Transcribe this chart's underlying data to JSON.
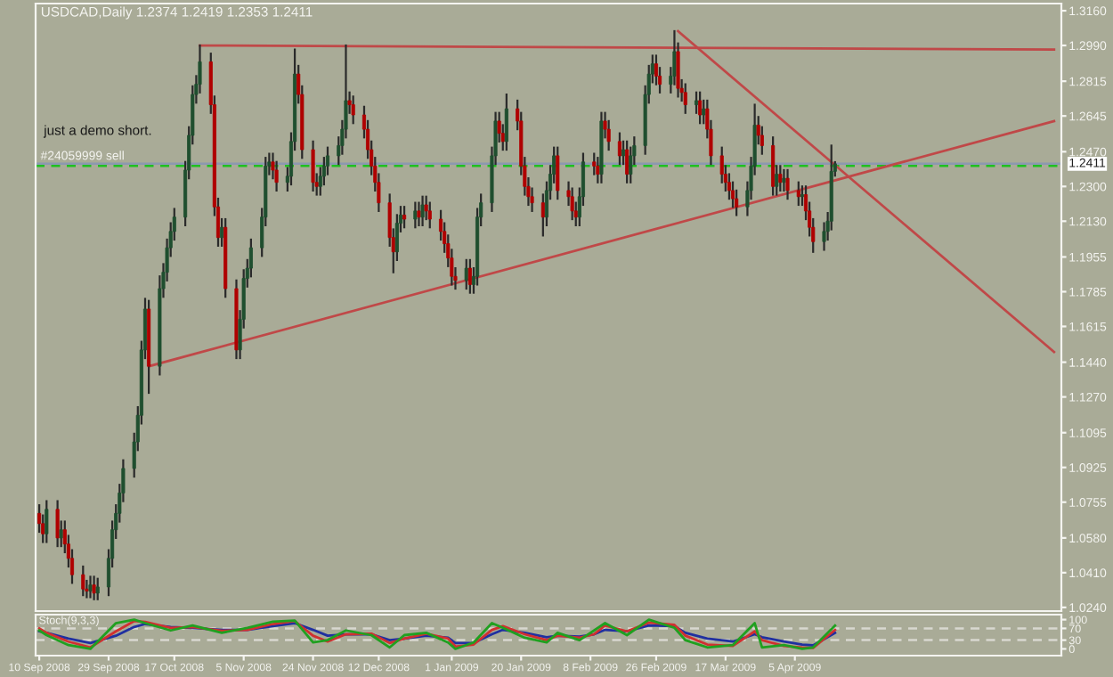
{
  "chart_data": [
    {
      "type": "candlestick",
      "title": "USDCAD,Daily 1.2374 1.2419 1.2353 1.2411",
      "x": [
        "2008-09-10",
        "2008-09-11",
        "2008-09-12",
        "2008-09-15",
        "2008-09-16",
        "2008-09-17",
        "2008-09-18",
        "2008-09-19",
        "2008-09-22",
        "2008-09-23",
        "2008-09-24",
        "2008-09-25",
        "2008-09-26",
        "2008-09-29",
        "2008-09-30",
        "2008-10-01",
        "2008-10-02",
        "2008-10-03",
        "2008-10-06",
        "2008-10-07",
        "2008-10-08",
        "2008-10-09",
        "2008-10-10",
        "2008-10-13",
        "2008-10-14",
        "2008-10-15",
        "2008-10-16",
        "2008-10-17",
        "2008-10-20",
        "2008-10-21",
        "2008-10-22",
        "2008-10-23",
        "2008-10-24",
        "2008-10-27",
        "2008-10-28",
        "2008-10-29",
        "2008-10-30",
        "2008-10-31",
        "2008-11-03",
        "2008-11-04",
        "2008-11-05",
        "2008-11-06",
        "2008-11-07",
        "2008-11-10",
        "2008-11-11",
        "2008-11-12",
        "2008-11-13",
        "2008-11-14",
        "2008-11-17",
        "2008-11-18",
        "2008-11-19",
        "2008-11-20",
        "2008-11-21",
        "2008-11-24",
        "2008-11-25",
        "2008-11-26",
        "2008-11-27",
        "2008-11-28",
        "2008-12-01",
        "2008-12-02",
        "2008-12-03",
        "2008-12-04",
        "2008-12-05",
        "2008-12-08",
        "2008-12-09",
        "2008-12-10",
        "2008-12-11",
        "2008-12-12",
        "2008-12-15",
        "2008-12-16",
        "2008-12-17",
        "2008-12-18",
        "2008-12-19",
        "2008-12-22",
        "2008-12-23",
        "2008-12-24",
        "2008-12-25",
        "2008-12-26",
        "2008-12-29",
        "2008-12-30",
        "2008-12-31",
        "2009-01-01",
        "2009-01-02",
        "2009-01-05",
        "2009-01-06",
        "2009-01-07",
        "2009-01-08",
        "2009-01-09",
        "2009-01-12",
        "2009-01-13",
        "2009-01-14",
        "2009-01-15",
        "2009-01-16",
        "2009-01-19",
        "2009-01-20",
        "2009-01-21",
        "2009-01-22",
        "2009-01-23",
        "2009-01-26",
        "2009-01-27",
        "2009-01-28",
        "2009-01-29",
        "2009-01-30",
        "2009-02-02",
        "2009-02-03",
        "2009-02-04",
        "2009-02-05",
        "2009-02-06",
        "2009-02-09",
        "2009-02-10",
        "2009-02-11",
        "2009-02-12",
        "2009-02-13",
        "2009-02-16",
        "2009-02-17",
        "2009-02-18",
        "2009-02-19",
        "2009-02-20",
        "2009-02-23",
        "2009-02-24",
        "2009-02-25",
        "2009-02-26",
        "2009-02-27",
        "2009-03-02",
        "2009-03-03",
        "2009-03-04",
        "2009-03-05",
        "2009-03-06",
        "2009-03-09",
        "2009-03-10",
        "2009-03-11",
        "2009-03-12",
        "2009-03-13",
        "2009-03-16",
        "2009-03-17",
        "2009-03-18",
        "2009-03-19",
        "2009-03-20",
        "2009-03-23",
        "2009-03-24",
        "2009-03-25",
        "2009-03-26",
        "2009-03-27",
        "2009-03-30",
        "2009-03-31",
        "2009-04-01",
        "2009-04-02",
        "2009-04-03",
        "2009-04-06",
        "2009-04-07",
        "2009-04-08",
        "2009-04-09",
        "2009-04-10",
        "2009-04-13",
        "2009-04-14",
        "2009-04-15",
        "2009-04-16"
      ],
      "ohlc": [
        [
          1.07,
          1.074,
          1.061,
          1.065
        ],
        [
          1.065,
          1.069,
          1.056,
          1.06
        ],
        [
          1.06,
          1.076,
          1.056,
          1.072
        ],
        [
          1.072,
          1.076,
          1.054,
          1.058
        ],
        [
          1.058,
          1.066,
          1.054,
          1.062
        ],
        [
          1.062,
          1.066,
          1.051,
          1.055
        ],
        [
          1.055,
          1.059,
          1.044,
          1.048
        ],
        [
          1.048,
          1.052,
          1.036,
          1.04
        ],
        [
          1.04,
          1.044,
          1.03,
          1.033
        ],
        [
          1.033,
          1.037,
          1.029,
          1.032
        ],
        [
          1.032,
          1.039,
          1.029,
          1.035
        ],
        [
          1.035,
          1.039,
          1.028,
          1.031
        ],
        [
          1.031,
          1.038,
          1.028,
          1.034
        ],
        [
          1.034,
          1.052,
          1.03,
          1.048
        ],
        [
          1.048,
          1.066,
          1.044,
          1.062
        ],
        [
          1.062,
          1.074,
          1.058,
          1.07
        ],
        [
          1.07,
          1.084,
          1.066,
          1.08
        ],
        [
          1.08,
          1.096,
          1.076,
          1.092
        ],
        [
          1.092,
          1.109,
          1.088,
          1.105
        ],
        [
          1.105,
          1.122,
          1.101,
          1.118
        ],
        [
          1.118,
          1.154,
          1.114,
          1.15
        ],
        [
          1.15,
          1.175,
          1.146,
          1.17
        ],
        [
          1.17,
          1.174,
          1.129,
          1.142
        ],
        [
          1.142,
          1.186,
          1.138,
          1.18
        ],
        [
          1.18,
          1.192,
          1.176,
          1.188
        ],
        [
          1.188,
          1.204,
          1.184,
          1.2
        ],
        [
          1.2,
          1.212,
          1.196,
          1.208
        ],
        [
          1.208,
          1.219,
          1.204,
          1.215
        ],
        [
          1.215,
          1.242,
          1.211,
          1.238
        ],
        [
          1.238,
          1.259,
          1.234,
          1.255
        ],
        [
          1.255,
          1.279,
          1.251,
          1.275
        ],
        [
          1.275,
          1.284,
          1.271,
          1.28
        ],
        [
          1.28,
          1.299,
          1.276,
          1.291
        ],
        [
          1.291,
          1.295,
          1.266,
          1.27
        ],
        [
          1.27,
          1.274,
          1.216,
          1.22
        ],
        [
          1.22,
          1.224,
          1.201,
          1.205
        ],
        [
          1.205,
          1.214,
          1.201,
          1.21
        ],
        [
          1.21,
          1.214,
          1.176,
          1.18
        ],
        [
          1.18,
          1.184,
          1.146,
          1.15
        ],
        [
          1.15,
          1.169,
          1.146,
          1.165
        ],
        [
          1.165,
          1.189,
          1.161,
          1.185
        ],
        [
          1.185,
          1.194,
          1.181,
          1.19
        ],
        [
          1.19,
          1.204,
          1.186,
          1.2
        ],
        [
          1.2,
          1.219,
          1.196,
          1.215
        ],
        [
          1.215,
          1.244,
          1.211,
          1.24
        ],
        [
          1.24,
          1.246,
          1.236,
          1.242
        ],
        [
          1.242,
          1.246,
          1.234,
          1.238
        ],
        [
          1.238,
          1.242,
          1.228,
          1.232
        ],
        [
          1.232,
          1.239,
          1.228,
          1.235
        ],
        [
          1.235,
          1.256,
          1.231,
          1.252
        ],
        [
          1.252,
          1.297,
          1.248,
          1.285
        ],
        [
          1.285,
          1.289,
          1.271,
          1.275
        ],
        [
          1.275,
          1.279,
          1.244,
          1.248
        ],
        [
          1.248,
          1.252,
          1.228,
          1.232
        ],
        [
          1.232,
          1.236,
          1.226,
          1.23
        ],
        [
          1.23,
          1.239,
          1.226,
          1.235
        ],
        [
          1.235,
          1.244,
          1.231,
          1.24
        ],
        [
          1.24,
          1.249,
          1.236,
          1.245
        ],
        [
          1.245,
          1.254,
          1.241,
          1.25
        ],
        [
          1.25,
          1.262,
          1.246,
          1.258
        ],
        [
          1.258,
          1.299,
          1.254,
          1.272
        ],
        [
          1.272,
          1.276,
          1.266,
          1.27
        ],
        [
          1.27,
          1.274,
          1.261,
          1.265
        ],
        [
          1.265,
          1.269,
          1.254,
          1.258
        ],
        [
          1.258,
          1.262,
          1.244,
          1.248
        ],
        [
          1.248,
          1.252,
          1.236,
          1.24
        ],
        [
          1.24,
          1.244,
          1.228,
          1.232
        ],
        [
          1.232,
          1.236,
          1.218,
          1.222
        ],
        [
          1.222,
          1.226,
          1.201,
          1.205
        ],
        [
          1.205,
          1.209,
          1.188,
          1.198
        ],
        [
          1.198,
          1.216,
          1.194,
          1.212
        ],
        [
          1.212,
          1.22,
          1.208,
          1.216
        ],
        [
          1.216,
          1.22,
          1.21,
          1.214
        ],
        [
          1.214,
          1.222,
          1.21,
          1.218
        ],
        [
          1.218,
          1.222,
          1.211,
          1.215
        ],
        [
          1.215,
          1.225,
          1.211,
          1.221
        ],
        [
          1.221,
          1.225,
          1.214,
          1.218
        ],
        [
          1.218,
          1.222,
          1.21,
          1.214
        ],
        [
          1.214,
          1.218,
          1.204,
          1.208
        ],
        [
          1.208,
          1.212,
          1.198,
          1.202
        ],
        [
          1.202,
          1.206,
          1.191,
          1.195
        ],
        [
          1.195,
          1.199,
          1.182,
          1.186
        ],
        [
          1.186,
          1.19,
          1.18,
          1.184
        ],
        [
          1.184,
          1.194,
          1.18,
          1.19
        ],
        [
          1.19,
          1.194,
          1.178,
          1.182
        ],
        [
          1.182,
          1.19,
          1.178,
          1.186
        ],
        [
          1.186,
          1.219,
          1.182,
          1.215
        ],
        [
          1.215,
          1.226,
          1.211,
          1.222
        ],
        [
          1.222,
          1.249,
          1.218,
          1.245
        ],
        [
          1.245,
          1.266,
          1.241,
          1.262
        ],
        [
          1.262,
          1.266,
          1.252,
          1.256
        ],
        [
          1.256,
          1.26,
          1.248,
          1.252
        ],
        [
          1.252,
          1.275,
          1.248,
          1.268
        ],
        [
          1.268,
          1.272,
          1.258,
          1.262
        ],
        [
          1.262,
          1.266,
          1.236,
          1.24
        ],
        [
          1.24,
          1.244,
          1.226,
          1.23
        ],
        [
          1.23,
          1.234,
          1.221,
          1.225
        ],
        [
          1.225,
          1.229,
          1.218,
          1.222
        ],
        [
          1.222,
          1.226,
          1.206,
          1.215
        ],
        [
          1.215,
          1.232,
          1.211,
          1.228
        ],
        [
          1.228,
          1.24,
          1.224,
          1.236
        ],
        [
          1.236,
          1.249,
          1.232,
          1.245
        ],
        [
          1.245,
          1.249,
          1.224,
          1.228
        ],
        [
          1.228,
          1.232,
          1.221,
          1.225
        ],
        [
          1.225,
          1.229,
          1.214,
          1.218
        ],
        [
          1.218,
          1.222,
          1.211,
          1.215
        ],
        [
          1.215,
          1.229,
          1.211,
          1.225
        ],
        [
          1.225,
          1.246,
          1.221,
          1.242
        ],
        [
          1.242,
          1.246,
          1.236,
          1.24
        ],
        [
          1.24,
          1.244,
          1.232,
          1.236
        ],
        [
          1.236,
          1.266,
          1.232,
          1.262
        ],
        [
          1.262,
          1.266,
          1.254,
          1.258
        ],
        [
          1.258,
          1.262,
          1.248,
          1.252
        ],
        [
          1.252,
          1.256,
          1.241,
          1.245
        ],
        [
          1.245,
          1.252,
          1.241,
          1.248
        ],
        [
          1.248,
          1.252,
          1.232,
          1.236
        ],
        [
          1.236,
          1.249,
          1.232,
          1.245
        ],
        [
          1.245,
          1.254,
          1.241,
          1.25
        ],
        [
          1.25,
          1.279,
          1.246,
          1.275
        ],
        [
          1.275,
          1.289,
          1.271,
          1.285
        ],
        [
          1.285,
          1.294,
          1.281,
          1.29
        ],
        [
          1.29,
          1.294,
          1.28,
          1.284
        ],
        [
          1.284,
          1.288,
          1.276,
          1.28
        ],
        [
          1.28,
          1.288,
          1.276,
          1.284
        ],
        [
          1.284,
          1.306,
          1.28,
          1.296
        ],
        [
          1.296,
          1.3,
          1.274,
          1.278
        ],
        [
          1.278,
          1.282,
          1.272,
          1.276
        ],
        [
          1.276,
          1.28,
          1.266,
          1.27
        ],
        [
          1.27,
          1.276,
          1.266,
          1.272
        ],
        [
          1.272,
          1.276,
          1.261,
          1.265
        ],
        [
          1.265,
          1.272,
          1.261,
          1.268
        ],
        [
          1.268,
          1.272,
          1.254,
          1.258
        ],
        [
          1.258,
          1.262,
          1.241,
          1.245
        ],
        [
          1.245,
          1.249,
          1.232,
          1.236
        ],
        [
          1.236,
          1.24,
          1.228,
          1.232
        ],
        [
          1.232,
          1.236,
          1.224,
          1.228
        ],
        [
          1.228,
          1.232,
          1.22,
          1.224
        ],
        [
          1.224,
          1.228,
          1.216,
          1.22
        ],
        [
          1.22,
          1.232,
          1.216,
          1.228
        ],
        [
          1.228,
          1.244,
          1.224,
          1.24
        ],
        [
          1.24,
          1.27,
          1.236,
          1.26
        ],
        [
          1.26,
          1.264,
          1.251,
          1.255
        ],
        [
          1.255,
          1.259,
          1.246,
          1.25
        ],
        [
          1.25,
          1.254,
          1.226,
          1.23
        ],
        [
          1.23,
          1.24,
          1.226,
          1.236
        ],
        [
          1.236,
          1.24,
          1.228,
          1.232
        ],
        [
          1.232,
          1.238,
          1.228,
          1.234
        ],
        [
          1.234,
          1.238,
          1.224,
          1.228
        ],
        [
          1.228,
          1.232,
          1.221,
          1.225
        ],
        [
          1.225,
          1.23,
          1.221,
          1.226
        ],
        [
          1.226,
          1.23,
          1.214,
          1.218
        ],
        [
          1.218,
          1.222,
          1.206,
          1.21
        ],
        [
          1.21,
          1.214,
          1.198,
          1.203
        ],
        [
          1.203,
          1.212,
          1.199,
          1.208
        ],
        [
          1.208,
          1.217,
          1.204,
          1.213
        ],
        [
          1.213,
          1.25,
          1.209,
          1.2374
        ],
        [
          1.2374,
          1.2419,
          1.2353,
          1.2411
        ]
      ],
      "series": [
        {
          "type": "line",
          "color": "#c04848",
          "x": [
            "2008-10-24",
            "2009-06-15"
          ],
          "values": [
            1.299,
            1.297
          ]
        },
        {
          "type": "line",
          "color": "#c04848",
          "x": [
            "2008-10-10",
            "2009-06-15"
          ],
          "values": [
            1.142,
            1.262
          ]
        },
        {
          "type": "line",
          "color": "#c04848",
          "x": [
            "2009-03-04",
            "2009-06-15"
          ],
          "values": [
            1.306,
            1.149
          ]
        }
      ],
      "ref_lines": [
        {
          "axis": "y",
          "value": 1.2411,
          "label": "1.2411",
          "color": "#8c98b0",
          "line_style": "solid"
        },
        {
          "axis": "y",
          "value": 1.24,
          "label": "#24059999 sell",
          "color": "#20c020",
          "line_style": "dashed"
        }
      ],
      "annotations": [
        "just a demo short."
      ],
      "xlim": [
        "2008-09-09",
        "2009-06-17"
      ],
      "ylim": [
        1.0222,
        1.3195
      ],
      "yticks": [
        {
          "value": 1.316,
          "label": "1.3160"
        },
        {
          "value": 1.299,
          "label": "1.2990"
        },
        {
          "value": 1.2815,
          "label": "1.2815"
        },
        {
          "value": 1.2645,
          "label": "1.2645"
        },
        {
          "value": 1.247,
          "label": "1.2470"
        },
        {
          "value": 1.23,
          "label": "1.2300"
        },
        {
          "value": 1.213,
          "label": "1.2130"
        },
        {
          "value": 1.1955,
          "label": "1.1955"
        },
        {
          "value": 1.1785,
          "label": "1.1785"
        },
        {
          "value": 1.1615,
          "label": "1.1615"
        },
        {
          "value": 1.144,
          "label": "1.1440"
        },
        {
          "value": 1.127,
          "label": "1.1270"
        },
        {
          "value": 1.1095,
          "label": "1.1095"
        },
        {
          "value": 1.0925,
          "label": "1.0925"
        },
        {
          "value": 1.0755,
          "label": "1.0755"
        },
        {
          "value": 1.058,
          "label": "1.0580"
        },
        {
          "value": 1.041,
          "label": "1.0410"
        },
        {
          "value": 1.024,
          "label": "1.0240"
        }
      ],
      "tick_labels": "y",
      "grid": false,
      "legend": false
    },
    {
      "type": "line",
      "title": "Stoch(9,3,3)",
      "series": [
        {
          "color": "#2030a0",
          "x": [
            "2008-09-10",
            "2008-09-12",
            "2008-09-18",
            "2008-09-24",
            "2008-10-01",
            "2008-10-06",
            "2008-10-09",
            "2008-10-16",
            "2008-10-22",
            "2008-10-30",
            "2008-11-06",
            "2008-11-13",
            "2008-11-19",
            "2008-11-24",
            "2008-11-28",
            "2008-12-03",
            "2008-12-10",
            "2008-12-15",
            "2008-12-19",
            "2008-12-25",
            "2008-12-31",
            "2009-01-02",
            "2009-01-07",
            "2009-01-12",
            "2009-01-15",
            "2009-01-21",
            "2009-01-27",
            "2009-01-30",
            "2009-02-05",
            "2009-02-09",
            "2009-02-12",
            "2009-02-18",
            "2009-02-24",
            "2009-03-03",
            "2009-03-06",
            "2009-03-12",
            "2009-03-19",
            "2009-03-25",
            "2009-03-27",
            "2009-04-02",
            "2009-04-07",
            "2009-04-10",
            "2009-04-16"
          ],
          "values": [
            60,
            55,
            35,
            20,
            45,
            75,
            85,
            75,
            72,
            65,
            65,
            78,
            88,
            65,
            45,
            50,
            50,
            30,
            35,
            45,
            38,
            20,
            20,
            50,
            65,
            55,
            40,
            45,
            42,
            50,
            65,
            60,
            80,
            78,
            55,
            35,
            25,
            50,
            40,
            25,
            15,
            12,
            55
          ]
        },
        {
          "color": "#d03030",
          "x": [
            "2008-09-10",
            "2008-09-12",
            "2008-09-18",
            "2008-09-24",
            "2008-10-01",
            "2008-10-06",
            "2008-10-09",
            "2008-10-16",
            "2008-10-22",
            "2008-10-30",
            "2008-11-06",
            "2008-11-13",
            "2008-11-19",
            "2008-11-24",
            "2008-11-28",
            "2008-12-03",
            "2008-12-10",
            "2008-12-15",
            "2008-12-19",
            "2008-12-25",
            "2008-12-31",
            "2009-01-02",
            "2009-01-07",
            "2009-01-12",
            "2009-01-15",
            "2009-01-21",
            "2009-01-27",
            "2009-01-30",
            "2009-02-05",
            "2009-02-09",
            "2009-02-12",
            "2009-02-18",
            "2009-02-24",
            "2009-03-03",
            "2009-03-06",
            "2009-03-12",
            "2009-03-19",
            "2009-03-25",
            "2009-03-27",
            "2009-04-02",
            "2009-04-07",
            "2009-04-10",
            "2009-04-16"
          ],
          "values": [
            70,
            55,
            25,
            5,
            60,
            95,
            92,
            72,
            75,
            62,
            65,
            85,
            95,
            45,
            25,
            50,
            52,
            20,
            35,
            52,
            35,
            8,
            15,
            65,
            78,
            50,
            30,
            45,
            38,
            50,
            80,
            60,
            90,
            82,
            45,
            15,
            10,
            60,
            30,
            10,
            5,
            3,
            65
          ]
        },
        {
          "color": "#20a020",
          "x": [
            "2008-09-10",
            "2008-09-12",
            "2008-09-18",
            "2008-09-24",
            "2008-10-01",
            "2008-10-06",
            "2008-10-09",
            "2008-10-16",
            "2008-10-22",
            "2008-10-30",
            "2008-11-06",
            "2008-11-13",
            "2008-11-19",
            "2008-11-24",
            "2008-11-28",
            "2008-12-03",
            "2008-12-10",
            "2008-12-15",
            "2008-12-19",
            "2008-12-25",
            "2008-12-31",
            "2009-01-02",
            "2009-01-07",
            "2009-01-12",
            "2009-01-15",
            "2009-01-21",
            "2009-01-27",
            "2009-01-30",
            "2009-02-05",
            "2009-02-09",
            "2009-02-12",
            "2009-02-18",
            "2009-02-24",
            "2009-03-03",
            "2009-03-06",
            "2009-03-12",
            "2009-03-19",
            "2009-03-25",
            "2009-03-27",
            "2009-04-02",
            "2009-04-07",
            "2009-04-10",
            "2009-04-16"
          ],
          "values": [
            63,
            47,
            13,
            0,
            88,
            100,
            88,
            63,
            80,
            55,
            72,
            93,
            97,
            22,
            30,
            63,
            47,
            5,
            47,
            55,
            22,
            0,
            22,
            88,
            72,
            38,
            22,
            55,
            30,
            63,
            88,
            47,
            100,
            72,
            30,
            5,
            13,
            88,
            5,
            13,
            0,
            5,
            80
          ]
        }
      ],
      "ref_lines": [
        {
          "axis": "y",
          "value": 70,
          "color": "#d8d8d0",
          "line_style": "dashed"
        },
        {
          "axis": "y",
          "value": 30,
          "color": "#d8d8d0",
          "line_style": "dashed"
        }
      ],
      "xlim": [
        "2008-09-09",
        "2009-06-17"
      ],
      "ylim": [
        -23,
        117
      ],
      "yticks": [
        0,
        30,
        70,
        100
      ],
      "xticks": [
        {
          "value": "2008-09-10",
          "label": "10 Sep 2008"
        },
        {
          "value": "2008-09-29",
          "label": "29 Sep 2008"
        },
        {
          "value": "2008-10-17",
          "label": "17 Oct 2008"
        },
        {
          "value": "2008-11-05",
          "label": "5 Nov 2008"
        },
        {
          "value": "2008-11-24",
          "label": "24 Nov 2008"
        },
        {
          "value": "2008-12-12",
          "label": "12 Dec 2008"
        },
        {
          "value": "2009-01-01",
          "label": "1 Jan 2009"
        },
        {
          "value": "2009-01-20",
          "label": "20 Jan 2009"
        },
        {
          "value": "2009-02-08",
          "label": "8 Feb 2009"
        },
        {
          "value": "2009-02-26",
          "label": "26 Feb 2009"
        },
        {
          "value": "2009-03-17",
          "label": "17 Mar 2009"
        },
        {
          "value": "2009-04-05",
          "label": "5 Apr 2009"
        }
      ],
      "grid": false,
      "legend": false,
      "marker": "none",
      "line_style": "solid"
    }
  ]
}
